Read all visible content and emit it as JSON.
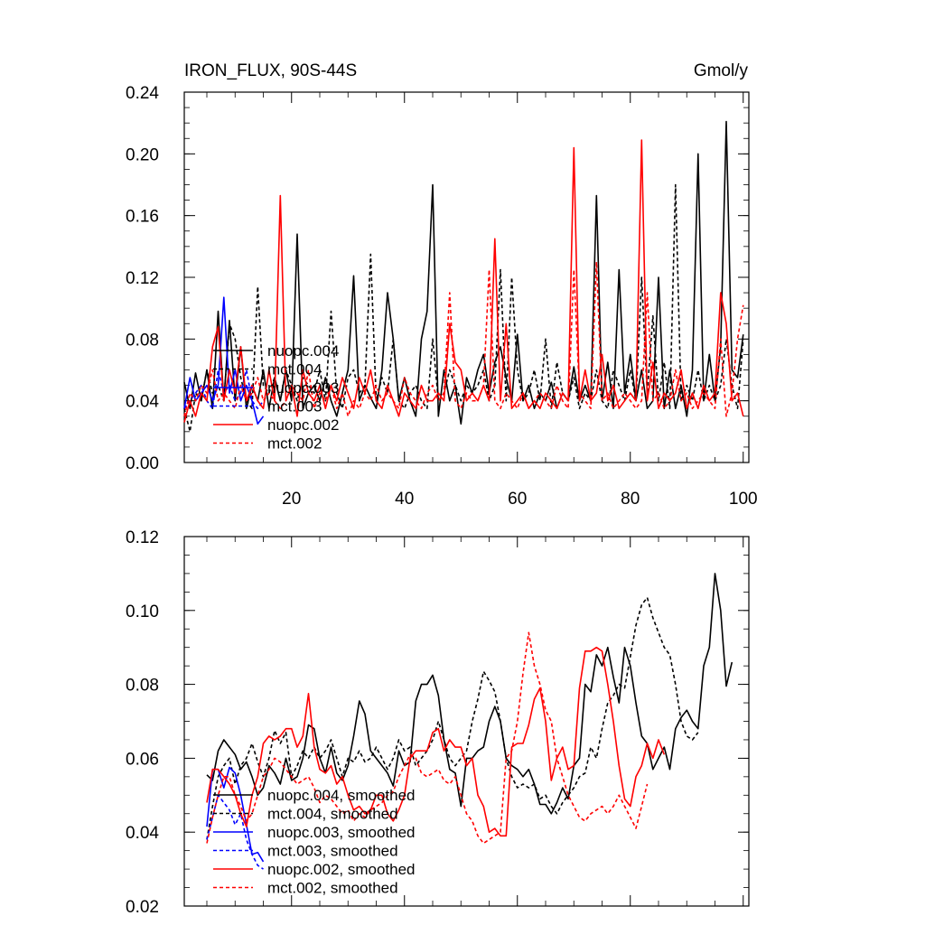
{
  "chart_data": [
    {
      "type": "line",
      "title": "IRON_FLUX, 90S-44S",
      "units": "Gmol/y",
      "xlim": [
        1,
        101
      ],
      "ylim": [
        0.0,
        0.24
      ],
      "xticks": [
        20,
        40,
        60,
        80,
        100
      ],
      "xtick_labels": [
        "20",
        "40",
        "60",
        "80",
        "100"
      ],
      "yticks": [
        0.0,
        0.04,
        0.08,
        0.12,
        0.16,
        0.2,
        0.24
      ],
      "ytick_labels": [
        "0.00",
        "0.04",
        "0.08",
        "0.12",
        "0.16",
        "0.20",
        "0.24"
      ],
      "grid": false,
      "legend_position": "lower-left",
      "series": [
        {
          "name": "nuopc.004",
          "color": "#000000",
          "dash": "solid",
          "x_start": 1,
          "values": [
            0.052,
            0.035,
            0.058,
            0.04,
            0.06,
            0.035,
            0.098,
            0.04,
            0.092,
            0.04,
            0.075,
            0.035,
            0.05,
            0.04,
            0.06,
            0.035,
            0.055,
            0.04,
            0.06,
            0.04,
            0.148,
            0.035,
            0.045,
            0.05,
            0.04,
            0.055,
            0.04,
            0.03,
            0.045,
            0.06,
            0.121,
            0.04,
            0.05,
            0.042,
            0.035,
            0.06,
            0.11,
            0.08,
            0.04,
            0.055,
            0.04,
            0.03,
            0.08,
            0.098,
            0.18,
            0.03,
            0.06,
            0.04,
            0.05,
            0.025,
            0.055,
            0.045,
            0.06,
            0.07,
            0.045,
            0.065,
            0.075,
            0.055,
            0.04,
            0.083,
            0.04,
            0.05,
            0.035,
            0.045,
            0.04,
            0.052,
            0.035,
            0.045,
            0.04,
            0.062,
            0.04,
            0.05,
            0.04,
            0.173,
            0.04,
            0.065,
            0.035,
            0.125,
            0.045,
            0.07,
            0.04,
            0.06,
            0.035,
            0.04,
            0.12,
            0.035,
            0.06,
            0.035,
            0.05,
            0.03,
            0.06,
            0.2,
            0.04,
            0.07,
            0.04,
            0.075,
            0.221,
            0.06,
            0.055,
            0.083
          ]
        },
        {
          "name": "mct.004",
          "color": "#000000",
          "dash": "dashed",
          "x_start": 1,
          "values": [
            0.035,
            0.02,
            0.045,
            0.04,
            0.06,
            0.045,
            0.05,
            0.04,
            0.09,
            0.08,
            0.055,
            0.04,
            0.035,
            0.114,
            0.05,
            0.045,
            0.055,
            0.04,
            0.06,
            0.05,
            0.04,
            0.055,
            0.05,
            0.045,
            0.06,
            0.04,
            0.098,
            0.045,
            0.035,
            0.055,
            0.06,
            0.045,
            0.05,
            0.135,
            0.04,
            0.055,
            0.045,
            0.08,
            0.04,
            0.035,
            0.045,
            0.05,
            0.04,
            0.035,
            0.08,
            0.04,
            0.045,
            0.06,
            0.05,
            0.04,
            0.05,
            0.045,
            0.05,
            0.06,
            0.04,
            0.05,
            0.125,
            0.04,
            0.12,
            0.06,
            0.04,
            0.045,
            0.06,
            0.04,
            0.08,
            0.035,
            0.065,
            0.045,
            0.04,
            0.055,
            0.035,
            0.045,
            0.04,
            0.06,
            0.04,
            0.035,
            0.06,
            0.05,
            0.04,
            0.06,
            0.04,
            0.12,
            0.045,
            0.095,
            0.04,
            0.065,
            0.035,
            0.18,
            0.04,
            0.05,
            0.04,
            0.06,
            0.04,
            0.05,
            0.04,
            0.05,
            0.08,
            0.05,
            0.035,
            0.08
          ]
        },
        {
          "name": "nuopc.003",
          "color": "#0000ff",
          "dash": "solid",
          "x_start": 1,
          "values": [
            0.035,
            0.055,
            0.04,
            0.045,
            0.05,
            0.04,
            0.05,
            0.107,
            0.045,
            0.06,
            0.04,
            0.05,
            0.04,
            0.025,
            0.03
          ]
        },
        {
          "name": "mct.003",
          "color": "#0000ff",
          "dash": "dashed",
          "x_start": 1,
          "values": [
            0.035,
            0.04,
            0.045,
            0.05,
            0.04,
            0.035,
            0.06,
            0.045,
            0.05,
            0.04,
            0.045,
            0.06,
            0.04,
            0.035,
            0.04
          ]
        },
        {
          "name": "nuopc.002",
          "color": "#ff0000",
          "dash": "solid",
          "x_start": 1,
          "values": [
            0.026,
            0.04,
            0.03,
            0.045,
            0.04,
            0.075,
            0.088,
            0.04,
            0.06,
            0.045,
            0.075,
            0.04,
            0.05,
            0.04,
            0.035,
            0.06,
            0.04,
            0.173,
            0.04,
            0.05,
            0.03,
            0.06,
            0.045,
            0.04,
            0.05,
            0.035,
            0.05,
            0.04,
            0.055,
            0.045,
            0.035,
            0.055,
            0.045,
            0.06,
            0.04,
            0.035,
            0.05,
            0.04,
            0.03,
            0.045,
            0.04,
            0.035,
            0.05,
            0.04,
            0.04,
            0.045,
            0.04,
            0.09,
            0.065,
            0.06,
            0.04,
            0.045,
            0.04,
            0.05,
            0.04,
            0.145,
            0.04,
            0.09,
            0.035,
            0.04,
            0.045,
            0.035,
            0.04,
            0.035,
            0.045,
            0.04,
            0.035,
            0.045,
            0.04,
            0.204,
            0.04,
            0.06,
            0.04,
            0.045,
            0.07,
            0.04,
            0.05,
            0.035,
            0.04,
            0.045,
            0.04,
            0.209,
            0.04,
            0.065,
            0.035,
            0.045,
            0.04,
            0.045,
            0.06,
            0.035,
            0.045,
            0.035,
            0.05,
            0.04,
            0.045,
            0.11,
            0.09,
            0.04,
            0.045,
            0.03
          ]
        },
        {
          "name": "mct.002",
          "color": "#ff0000",
          "dash": "dashed",
          "x_start": 1,
          "values": [
            0.03,
            0.045,
            0.04,
            0.05,
            0.045,
            0.06,
            0.04,
            0.045,
            0.04,
            0.035,
            0.05,
            0.04,
            0.045,
            0.055,
            0.04,
            0.045,
            0.04,
            0.035,
            0.04,
            0.05,
            0.045,
            0.04,
            0.06,
            0.035,
            0.045,
            0.04,
            0.05,
            0.035,
            0.045,
            0.03,
            0.04,
            0.035,
            0.045,
            0.04,
            0.05,
            0.04,
            0.045,
            0.04,
            0.035,
            0.055,
            0.045,
            0.04,
            0.035,
            0.045,
            0.05,
            0.04,
            0.045,
            0.11,
            0.04,
            0.035,
            0.045,
            0.04,
            0.04,
            0.05,
            0.125,
            0.04,
            0.035,
            0.045,
            0.04,
            0.035,
            0.045,
            0.035,
            0.04,
            0.045,
            0.04,
            0.035,
            0.05,
            0.04,
            0.035,
            0.125,
            0.045,
            0.04,
            0.035,
            0.13,
            0.04,
            0.045,
            0.035,
            0.04,
            0.045,
            0.04,
            0.035,
            0.04,
            0.11,
            0.04,
            0.045,
            0.035,
            0.04,
            0.06,
            0.04,
            0.045,
            0.035,
            0.04,
            0.045,
            0.04,
            0.035,
            0.08,
            0.03,
            0.045,
            0.08,
            0.102
          ]
        }
      ]
    },
    {
      "type": "line",
      "title": "",
      "xlim": [
        1,
        101
      ],
      "ylim": [
        0.02,
        0.12
      ],
      "xticks": [
        20,
        40,
        60,
        80,
        100
      ],
      "xtick_labels": [],
      "yticks": [
        0.02,
        0.04,
        0.06,
        0.08,
        0.1,
        0.12
      ],
      "ytick_labels": [
        "0.02",
        "0.04",
        "0.06",
        "0.08",
        "0.10",
        "0.12"
      ],
      "grid": false,
      "legend_position": "lower-left",
      "series": [
        {
          "name": "nuopc.004, smoothed",
          "color": "#000000",
          "dash": "solid",
          "x_start": 5,
          "values": [
            0.0555,
            0.054,
            0.062,
            0.065,
            0.063,
            0.061,
            0.057,
            0.059,
            0.055,
            0.05,
            0.052,
            0.058,
            0.056,
            0.053,
            0.06,
            0.054,
            0.055,
            0.06,
            0.069,
            0.068,
            0.06,
            0.056,
            0.063,
            0.056,
            0.054,
            0.058,
            0.066,
            0.0755,
            0.072,
            0.062,
            0.06,
            0.058,
            0.056,
            0.0525,
            0.062,
            0.058,
            0.059,
            0.0755,
            0.08,
            0.08,
            0.0825,
            0.077,
            0.065,
            0.057,
            0.056,
            0.047,
            0.06,
            0.06,
            0.062,
            0.063,
            0.07,
            0.074,
            0.07,
            0.06,
            0.058,
            0.057,
            0.055,
            0.057,
            0.053,
            0.0475,
            0.0475,
            0.045,
            0.048,
            0.052,
            0.049,
            0.058,
            0.06,
            0.08,
            0.078,
            0.088,
            0.085,
            0.09,
            0.082,
            0.075,
            0.09,
            0.085,
            0.075,
            0.066,
            0.064,
            0.057,
            0.06,
            0.063,
            0.057,
            0.068,
            0.071,
            0.073,
            0.07,
            0.068,
            0.085,
            0.09,
            0.11,
            0.1,
            0.0795,
            0.086
          ]
        },
        {
          "name": "mct.004, smoothed",
          "color": "#000000",
          "dash": "dashed",
          "x_start": 5,
          "values": [
            0.038,
            0.047,
            0.055,
            0.058,
            0.06,
            0.053,
            0.058,
            0.06,
            0.064,
            0.059,
            0.055,
            0.06,
            0.0675,
            0.064,
            0.067,
            0.055,
            0.058,
            0.062,
            0.06,
            0.063,
            0.06,
            0.062,
            0.065,
            0.06,
            0.055,
            0.06,
            0.059,
            0.062,
            0.059,
            0.06,
            0.063,
            0.06,
            0.057,
            0.06,
            0.065,
            0.062,
            0.063,
            0.058,
            0.06,
            0.062,
            0.065,
            0.07,
            0.065,
            0.06,
            0.058,
            0.06,
            0.062,
            0.07,
            0.076,
            0.0835,
            0.081,
            0.078,
            0.07,
            0.06,
            0.055,
            0.052,
            0.053,
            0.052,
            0.053,
            0.049,
            0.05,
            0.047,
            0.045,
            0.048,
            0.05,
            0.052,
            0.055,
            0.056,
            0.063,
            0.06,
            0.068,
            0.075,
            0.077,
            0.08,
            0.079,
            0.0875,
            0.096,
            0.1015,
            0.1035,
            0.098,
            0.094,
            0.09,
            0.088,
            0.08,
            0.07,
            0.066,
            0.065,
            0.067
          ]
        },
        {
          "name": "nuopc.003, smoothed",
          "color": "#0000ff",
          "dash": "solid",
          "x_start": 5,
          "values": [
            0.0415,
            0.057,
            0.057,
            0.052,
            0.0575,
            0.056,
            0.05,
            0.042,
            0.034,
            0.0345,
            0.032
          ]
        },
        {
          "name": "mct.003, smoothed",
          "color": "#0000ff",
          "dash": "dashed",
          "x_start": 5,
          "values": [
            0.038,
            0.044,
            0.05,
            0.048,
            0.046,
            0.042,
            0.045,
            0.038,
            0.034,
            0.031,
            0.03
          ]
        },
        {
          "name": "nuopc.002, smoothed",
          "color": "#ff0000",
          "dash": "solid",
          "x_start": 5,
          "values": [
            0.048,
            0.057,
            0.057,
            0.055,
            0.053,
            0.05,
            0.045,
            0.0415,
            0.05,
            0.055,
            0.064,
            0.066,
            0.065,
            0.066,
            0.068,
            0.068,
            0.063,
            0.066,
            0.0775,
            0.063,
            0.057,
            0.056,
            0.058,
            0.053,
            0.055,
            0.05,
            0.046,
            0.047,
            0.045,
            0.046,
            0.05,
            0.05,
            0.045,
            0.043,
            0.046,
            0.05,
            0.06,
            0.062,
            0.062,
            0.062,
            0.067,
            0.068,
            0.062,
            0.065,
            0.063,
            0.063,
            0.058,
            0.06,
            0.05,
            0.047,
            0.04,
            0.041,
            0.039,
            0.039,
            0.063,
            0.064,
            0.064,
            0.069,
            0.076,
            0.079,
            0.07,
            0.054,
            0.06,
            0.063,
            0.057,
            0.058,
            0.079,
            0.089,
            0.089,
            0.09,
            0.089,
            0.08,
            0.07,
            0.058,
            0.049,
            0.047,
            0.055,
            0.058,
            0.064,
            0.06,
            0.065,
            0.061
          ]
        },
        {
          "name": "mct.002, smoothed",
          "color": "#ff0000",
          "dash": "dashed",
          "x_start": 5,
          "values": [
            0.037,
            0.044,
            0.05,
            0.055,
            0.055,
            0.05,
            0.047,
            0.043,
            0.045,
            0.05,
            0.055,
            0.057,
            0.06,
            0.059,
            0.057,
            0.055,
            0.053,
            0.054,
            0.055,
            0.052,
            0.048,
            0.05,
            0.049,
            0.047,
            0.045,
            0.046,
            0.043,
            0.045,
            0.044,
            0.046,
            0.047,
            0.048,
            0.05,
            0.051,
            0.055,
            0.058,
            0.061,
            0.06,
            0.056,
            0.055,
            0.056,
            0.057,
            0.054,
            0.053,
            0.055,
            0.05,
            0.045,
            0.043,
            0.039,
            0.037,
            0.038,
            0.039,
            0.04,
            0.06,
            0.062,
            0.07,
            0.083,
            0.094,
            0.085,
            0.08,
            0.073,
            0.07,
            0.06,
            0.055,
            0.05,
            0.047,
            0.044,
            0.043,
            0.045,
            0.046,
            0.047,
            0.045,
            0.047,
            0.05,
            0.047,
            0.044,
            0.041,
            0.047,
            0.053
          ]
        }
      ]
    }
  ]
}
